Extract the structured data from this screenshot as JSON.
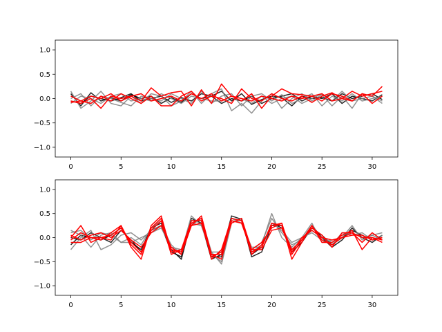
{
  "chart_data": [
    {
      "type": "line",
      "title": "",
      "xlabel": "",
      "ylabel": "",
      "xlim": [
        -1.55,
        32.55
      ],
      "ylim": [
        -1.2,
        1.2
      ],
      "xticks": [
        0,
        5,
        10,
        15,
        20,
        25,
        30
      ],
      "yticks": [
        -1.0,
        -0.5,
        0.0,
        0.5,
        1.0
      ],
      "ytick_labels": [
        "−1.0",
        "−0.5",
        "0.0",
        "0.5",
        "1.0"
      ],
      "grid": false,
      "x": [
        0,
        1,
        2,
        3,
        4,
        5,
        6,
        7,
        8,
        9,
        10,
        11,
        12,
        13,
        14,
        15,
        16,
        17,
        18,
        19,
        20,
        21,
        22,
        23,
        24,
        25,
        26,
        27,
        28,
        29,
        30,
        31
      ],
      "series": [
        {
          "color": "#000000",
          "values": [
            0.1,
            -0.15,
            0.12,
            -0.05,
            0.02,
            -0.05,
            0.08,
            0.0,
            0.05,
            -0.1,
            0.02,
            -0.08,
            0.1,
            0.0,
            0.05,
            0.15,
            -0.05,
            0.1,
            -0.12,
            -0.02,
            0.05,
            0.02,
            -0.15,
            0.05,
            0.0,
            0.02,
            -0.05,
            0.1,
            0.0,
            0.05,
            0.1,
            -0.02
          ]
        },
        {
          "color": "#000000",
          "values": [
            -0.05,
            -0.1,
            0.05,
            0.0,
            -0.05,
            0.02,
            0.1,
            -0.05,
            0.0,
            0.05,
            -0.08,
            0.02,
            -0.05,
            0.1,
            0.05,
            -0.1,
            0.0,
            -0.05,
            0.05,
            -0.1,
            0.0,
            0.05,
            0.1,
            -0.05,
            0.05,
            0.0,
            0.1,
            -0.1,
            0.05,
            0.0,
            -0.05,
            0.08
          ]
        },
        {
          "color": "#808080",
          "values": [
            0.15,
            -0.2,
            -0.05,
            0.15,
            -0.1,
            -0.15,
            0.05,
            -0.1,
            0.1,
            0.05,
            -0.15,
            -0.05,
            0.15,
            -0.1,
            0.1,
            0.2,
            -0.25,
            -0.1,
            -0.3,
            -0.05,
            0.1,
            -0.2,
            0.0,
            0.1,
            -0.05,
            0.08,
            -0.15,
            0.05,
            -0.2,
            0.1,
            0.05,
            -0.05
          ]
        },
        {
          "color": "#808080",
          "values": [
            0.0,
            0.1,
            -0.15,
            0.05,
            0.0,
            -0.08,
            -0.15,
            0.05,
            0.0,
            -0.05,
            0.1,
            0.0,
            -0.1,
            0.15,
            -0.1,
            0.05,
            0.1,
            -0.15,
            0.05,
            0.1,
            -0.05,
            0.08,
            -0.1,
            0.0,
            0.1,
            -0.15,
            0.05,
            -0.05,
            0.1,
            -0.05,
            0.0,
            0.05
          ]
        },
        {
          "color": "#808080",
          "values": [
            -0.1,
            0.05,
            0.0,
            -0.1,
            0.05,
            0.1,
            -0.05,
            0.0,
            -0.05,
            0.1,
            0.0,
            -0.1,
            0.05,
            0.0,
            -0.05,
            -0.05,
            0.05,
            0.0,
            -0.1,
            0.05,
            -0.1,
            0.0,
            0.05,
            -0.1,
            0.0,
            0.1,
            -0.05,
            0.15,
            -0.05,
            0.0,
            0.05,
            -0.1
          ]
        },
        {
          "color": "#ff0000",
          "values": [
            -0.05,
            -0.1,
            0.0,
            -0.2,
            0.05,
            0.0,
            0.05,
            -0.05,
            0.22,
            0.05,
            0.12,
            0.15,
            -0.15,
            0.18,
            -0.1,
            0.3,
            0.05,
            -0.05,
            0.1,
            -0.2,
            0.05,
            0.2,
            0.1,
            0.08,
            0.05,
            0.1,
            -0.05,
            0.0,
            0.15,
            0.05,
            0.1,
            0.15
          ]
        },
        {
          "color": "#ff0000",
          "values": [
            -0.08,
            -0.05,
            -0.1,
            0.05,
            -0.05,
            0.1,
            0.0,
            -0.1,
            0.05,
            -0.15,
            -0.15,
            0.05,
            0.15,
            -0.05,
            0.05,
            0.0,
            -0.1,
            0.2,
            0.0,
            -0.05,
            0.1,
            0.0,
            -0.05,
            0.05,
            -0.08,
            0.05,
            0.12,
            0.0,
            -0.05,
            0.1,
            0.05,
            0.25
          ]
        },
        {
          "color": "#ff0000",
          "values": [
            0.05,
            -0.05,
            0.05,
            0.0,
            0.1,
            -0.05,
            0.05,
            0.1,
            -0.05,
            0.0,
            0.05,
            -0.05,
            0.1,
            0.0,
            0.1,
            -0.05,
            0.05,
            0.0,
            -0.05,
            0.05,
            0.0,
            -0.05,
            0.05,
            0.0,
            0.05,
            -0.05,
            0.1,
            0.05,
            -0.05,
            0.1,
            -0.1,
            0.05
          ]
        }
      ]
    },
    {
      "type": "line",
      "title": "",
      "xlabel": "",
      "ylabel": "",
      "xlim": [
        -1.55,
        32.55
      ],
      "ylim": [
        -1.2,
        1.2
      ],
      "xticks": [
        0,
        5,
        10,
        15,
        20,
        25,
        30
      ],
      "yticks": [
        -1.0,
        -0.5,
        0.0,
        0.5,
        1.0
      ],
      "ytick_labels": [
        "−1.0",
        "−0.5",
        "0.0",
        "0.5",
        "1.0"
      ],
      "grid": false,
      "x": [
        0,
        1,
        2,
        3,
        4,
        5,
        6,
        7,
        8,
        9,
        10,
        11,
        12,
        13,
        14,
        15,
        16,
        17,
        18,
        19,
        20,
        21,
        22,
        23,
        24,
        25,
        26,
        27,
        28,
        29,
        30,
        31
      ],
      "series": [
        {
          "color": "#000000",
          "values": [
            -0.15,
            0.05,
            0.0,
            -0.05,
            0.05,
            0.2,
            -0.1,
            -0.25,
            0.2,
            0.3,
            -0.25,
            -0.45,
            0.35,
            0.35,
            -0.4,
            -0.4,
            0.4,
            0.35,
            -0.35,
            -0.2,
            0.3,
            0.2,
            -0.25,
            -0.05,
            0.25,
            0.0,
            -0.2,
            -0.05,
            0.2,
            0.0,
            -0.1,
            0.05
          ]
        },
        {
          "color": "#000000",
          "values": [
            0.0,
            -0.05,
            0.1,
            0.0,
            -0.1,
            0.15,
            -0.05,
            -0.3,
            0.15,
            0.25,
            -0.3,
            -0.4,
            0.4,
            0.3,
            -0.45,
            -0.35,
            0.45,
            0.38,
            -0.4,
            -0.3,
            0.25,
            0.25,
            -0.3,
            -0.1,
            0.2,
            0.05,
            -0.15,
            0.0,
            0.15,
            0.05,
            -0.05,
            0.0
          ]
        },
        {
          "color": "#808080",
          "values": [
            -0.25,
            0.0,
            0.15,
            -0.25,
            -0.15,
            0.05,
            0.1,
            -0.05,
            0.15,
            0.25,
            -0.15,
            -0.35,
            0.25,
            0.4,
            -0.3,
            -0.55,
            0.3,
            0.4,
            -0.3,
            -0.15,
            0.5,
            0.0,
            -0.2,
            0.0,
            0.3,
            -0.1,
            -0.05,
            0.0,
            0.25,
            -0.05,
            0.05,
            0.1
          ]
        },
        {
          "color": "#808080",
          "values": [
            0.1,
            0.15,
            -0.05,
            0.1,
            0.05,
            -0.1,
            -0.1,
            0.0,
            0.1,
            0.2,
            -0.2,
            -0.25,
            0.3,
            0.25,
            -0.35,
            -0.5,
            0.35,
            0.3,
            -0.25,
            -0.1,
            0.4,
            0.1,
            -0.15,
            -0.05,
            0.15,
            0.0,
            -0.1,
            0.05,
            0.1,
            0.0,
            0.05,
            -0.05
          ]
        },
        {
          "color": "#808080",
          "values": [
            0.15,
            0.05,
            -0.2,
            0.05,
            0.1,
            -0.1,
            0.0,
            -0.15,
            0.2,
            0.35,
            -0.25,
            -0.3,
            0.45,
            0.25,
            -0.3,
            -0.3,
            0.4,
            0.3,
            -0.2,
            -0.2,
            0.3,
            0.15,
            -0.1,
            0.0,
            0.1,
            -0.05,
            -0.15,
            0.1,
            0.05,
            0.1,
            -0.05,
            0.05
          ]
        },
        {
          "color": "#ff0000",
          "values": [
            0.0,
            0.25,
            -0.1,
            0.0,
            -0.05,
            0.25,
            -0.2,
            -0.45,
            0.25,
            0.45,
            -0.3,
            -0.25,
            0.25,
            0.45,
            -0.35,
            -0.45,
            0.35,
            0.3,
            -0.25,
            -0.1,
            0.2,
            0.3,
            -0.45,
            -0.1,
            0.25,
            -0.1,
            -0.1,
            0.05,
            0.15,
            -0.25,
            0.0,
            -0.1
          ]
        },
        {
          "color": "#ff0000",
          "values": [
            -0.05,
            0.1,
            0.0,
            -0.05,
            0.1,
            0.25,
            -0.15,
            -0.35,
            0.2,
            0.4,
            -0.25,
            -0.3,
            0.3,
            0.4,
            -0.45,
            -0.25,
            0.4,
            0.35,
            -0.35,
            -0.15,
            0.25,
            0.3,
            -0.35,
            -0.05,
            0.2,
            0.05,
            -0.2,
            0.1,
            0.1,
            -0.1,
            0.1,
            -0.05
          ]
        },
        {
          "color": "#ff0000",
          "values": [
            0.05,
            -0.05,
            0.05,
            0.1,
            0.0,
            0.15,
            -0.05,
            -0.2,
            0.1,
            0.25,
            -0.2,
            -0.35,
            0.25,
            0.3,
            -0.4,
            -0.3,
            0.3,
            0.4,
            -0.25,
            -0.25,
            0.15,
            0.2,
            -0.3,
            0.0,
            0.15,
            0.0,
            -0.05,
            0.0,
            0.05,
            0.05,
            -0.05,
            0.0
          ]
        },
        {
          "color": "#ff0000",
          "values": [
            -0.1,
            -0.1,
            0.0,
            0.0,
            0.05,
            0.2,
            -0.1,
            -0.3,
            0.15,
            0.35,
            -0.35,
            -0.25,
            0.35,
            0.35,
            -0.35,
            -0.35,
            0.35,
            0.3,
            -0.3,
            -0.2,
            0.3,
            0.25,
            -0.25,
            -0.05,
            0.25,
            -0.05,
            -0.15,
            0.0,
            0.1,
            0.0,
            0.0,
            -0.05
          ]
        }
      ]
    }
  ]
}
